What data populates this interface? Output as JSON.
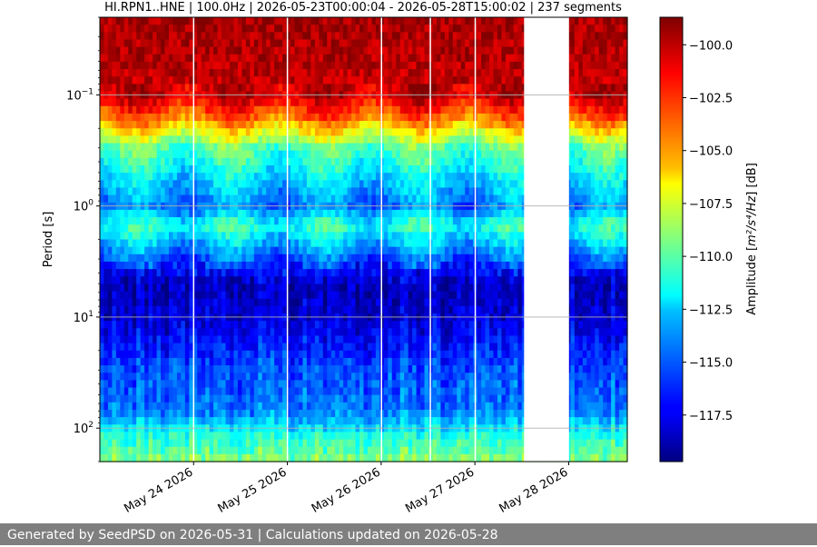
{
  "chart_data": {
    "type": "heatmap",
    "title": "HI.RPN1..HNE | 100.0Hz | 2026-05-23T00:00:04 - 2026-05-28T15:00:02 | 237 segments",
    "ylabel": "Period [s]",
    "xlabel": "",
    "yscale": "log",
    "ylim": [
      200,
      0.02
    ],
    "xlim": [
      "2026-05-23T00:00:04",
      "2026-05-28T15:00:02"
    ],
    "x_ticks": [
      {
        "date": "2026-05-24",
        "label": "May 24 2026"
      },
      {
        "date": "2026-05-25",
        "label": "May 25 2026"
      },
      {
        "date": "2026-05-26",
        "label": "May 26 2026"
      },
      {
        "date": "2026-05-27",
        "label": "May 27 2026"
      },
      {
        "date": "2026-05-28",
        "label": "May 28 2026"
      }
    ],
    "y_ticks": [
      {
        "value": 0.1,
        "label": "10",
        "exp": "−1"
      },
      {
        "value": 1,
        "label": "10",
        "exp": "0"
      },
      {
        "value": 10,
        "label": "10",
        "exp": "1"
      },
      {
        "value": 100,
        "label": "10",
        "exp": "2"
      }
    ],
    "grid": "horizontal",
    "colormap": "jet",
    "colorbar": {
      "label_prefix": "Amplitude [",
      "label_unit": "m²/s⁴/Hz",
      "label_suffix": "] [dB]",
      "range": [
        -119.7,
        -98.7
      ],
      "ticks": [
        "−100.0",
        "−102.5",
        "−105.0",
        "−107.5",
        "−110.0",
        "−112.5",
        "−115.0",
        "−117.5"
      ],
      "tick_values": [
        -100.0,
        -102.5,
        -105.0,
        -107.5,
        -110.0,
        -112.5,
        -115.0,
        -117.5
      ]
    },
    "data_gaps": [
      {
        "start": "2026-05-23T23:50",
        "end": "2026-05-24T00:10"
      },
      {
        "start": "2026-05-24T23:50",
        "end": "2026-05-25T00:10"
      },
      {
        "start": "2026-05-25T23:55",
        "end": "2026-05-26T00:05"
      },
      {
        "start": "2026-05-26T12:25",
        "end": "2026-05-26T12:40"
      },
      {
        "start": "2026-05-26T23:55",
        "end": "2026-05-27T00:05"
      },
      {
        "start": "2026-05-27T12:35",
        "end": "2026-05-28T00:05"
      }
    ],
    "spectrum_profile_db": [
      {
        "period": 0.02,
        "db": -99.5
      },
      {
        "period": 0.05,
        "db": -99.8
      },
      {
        "period": 0.1,
        "db": -100.2
      },
      {
        "period": 0.16,
        "db": -103.5
      },
      {
        "period": 0.3,
        "db": -110.0
      },
      {
        "period": 0.5,
        "db": -112.0
      },
      {
        "period": 1.0,
        "db": -114.5
      },
      {
        "period": 1.5,
        "db": -111.0
      },
      {
        "period": 2.5,
        "db": -114.0
      },
      {
        "period": 5.0,
        "db": -118.5
      },
      {
        "period": 10.0,
        "db": -118.0
      },
      {
        "period": 30.0,
        "db": -115.5
      },
      {
        "period": 70.0,
        "db": -114.5
      },
      {
        "period": 120.0,
        "db": -111.0
      },
      {
        "period": 200.0,
        "db": -109.0
      }
    ]
  },
  "footer": {
    "text": "Generated by SeedPSD on 2026-05-31 | Calculations updated on 2026-05-28"
  }
}
